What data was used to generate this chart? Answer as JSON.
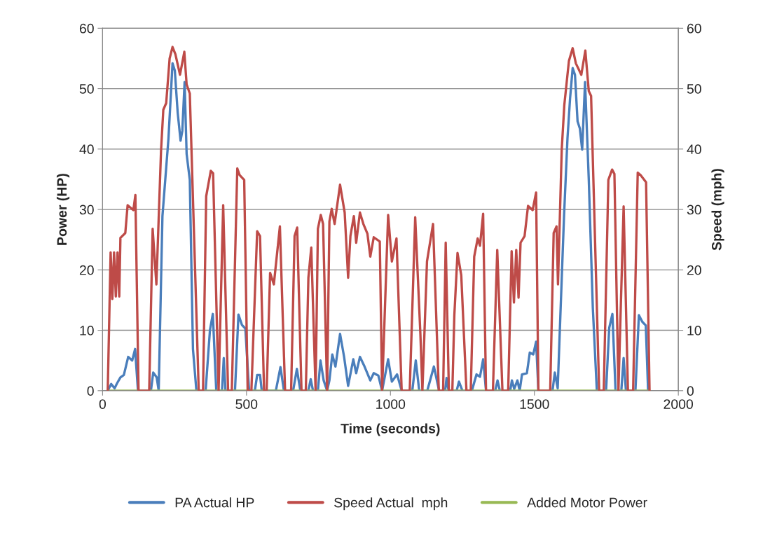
{
  "chart_data": {
    "type": "line",
    "xlabel": "Time (seconds)",
    "ylabel": "Power (HP)",
    "y2label": "Speed (mph)",
    "xlim": [
      0,
      2000
    ],
    "xticks": [
      0,
      500,
      1000,
      1500,
      2000
    ],
    "ylim": [
      0,
      60
    ],
    "yticks": [
      0,
      10,
      20,
      30,
      40,
      50,
      60
    ],
    "y2lim": [
      0,
      60
    ],
    "y2ticks": [
      0,
      10,
      20,
      30,
      40,
      50,
      60
    ],
    "grid": "y",
    "legend": "bottom",
    "marker": "none",
    "line_style": "solid",
    "series": [
      {
        "name": "PA Actual HP",
        "color": "#4a7ebb",
        "axis": "y",
        "x": [
          18,
          30,
          42,
          50,
          62,
          74,
          89,
          103,
          113,
          123,
          168,
          176,
          188,
          195,
          208,
          229,
          243,
          251,
          261,
          271,
          277,
          285,
          292,
          303,
          314,
          326,
          358,
          373,
          383,
          395,
          415,
          421,
          427,
          460,
          472,
          484,
          496,
          509,
          529,
          537,
          547,
          553,
          602,
          618,
          630,
          662,
          675,
          687,
          715,
          723,
          731,
          748,
          757,
          768,
          780,
          788,
          798,
          809,
          825,
          839,
          853,
          871,
          881,
          894,
          910,
          930,
          942,
          958,
          971,
          992,
          1005,
          1023,
          1039,
          1076,
          1088,
          1100,
          1128,
          1151,
          1169,
          1190,
          1195,
          1202,
          1230,
          1238,
          1250,
          1283,
          1299,
          1311,
          1322,
          1332,
          1364,
          1372,
          1380,
          1416,
          1422,
          1430,
          1441,
          1449,
          1457,
          1474,
          1484,
          1496,
          1506,
          1514,
          1563,
          1571,
          1581,
          1603,
          1615,
          1624,
          1633,
          1641,
          1650,
          1658,
          1666,
          1676,
          1689,
          1703,
          1717,
          1749,
          1760,
          1771,
          1782,
          1802,
          1810,
          1818,
          1851,
          1863,
          1875,
          1887,
          1895
        ],
        "values": [
          0,
          1.1,
          0.4,
          1.2,
          2.2,
          2.6,
          5.6,
          5.0,
          6.9,
          0,
          0,
          3,
          2.2,
          0,
          28.9,
          41.8,
          54.2,
          53,
          46,
          41.4,
          43,
          51.1,
          39.2,
          34.9,
          6.9,
          0,
          0,
          10,
          12.7,
          0,
          0,
          5.4,
          0,
          0,
          12.6,
          10.9,
          10.3,
          0,
          0,
          2.6,
          2.6,
          0,
          0,
          3.9,
          0,
          0,
          3.6,
          0,
          0,
          1.9,
          0,
          0,
          5,
          1.7,
          0,
          1.7,
          6,
          4,
          9.4,
          5.6,
          0.8,
          5.2,
          2.9,
          5.6,
          4,
          1.7,
          2.9,
          2.5,
          0,
          5.2,
          1.5,
          2.7,
          0,
          0,
          5,
          0,
          0,
          4,
          0,
          0,
          2.1,
          0,
          0,
          1.5,
          0,
          0,
          2.7,
          2.3,
          5.2,
          0,
          0,
          1.7,
          0,
          0,
          1.7,
          0.3,
          1.7,
          0,
          2.7,
          2.9,
          6.3,
          6,
          8.1,
          0,
          0,
          3,
          0.4,
          28.9,
          41.8,
          48.4,
          53.4,
          52.3,
          44.6,
          43.4,
          39.9,
          51.1,
          34.9,
          13.7,
          0,
          0,
          10.4,
          12.7,
          0,
          0,
          5.4,
          0,
          0,
          12.5,
          11.4,
          10.8,
          0
        ]
      },
      {
        "name": "Speed Actual  mph",
        "color": "#be4b48",
        "axis": "y2",
        "x": [
          18,
          28,
          34,
          40,
          46,
          52,
          58,
          62,
          79,
          87,
          107,
          114,
          125,
          162,
          174,
          187,
          203,
          211,
          221,
          233,
          243,
          253,
          269,
          284,
          292,
          303,
          334,
          349,
          360,
          376,
          384,
          403,
          419,
          436,
          449,
          468,
          476,
          492,
          504,
          517,
          537,
          547,
          561,
          570,
          582,
          595,
          616,
          634,
          655,
          667,
          676,
          691,
          706,
          715,
          725,
          740,
          748,
          758,
          766,
          780,
          788,
          796,
          806,
          825,
          841,
          853,
          861,
          873,
          881,
          894,
          906,
          920,
          930,
          942,
          963,
          971,
          992,
          1005,
          1021,
          1039,
          1067,
          1086,
          1104,
          1111,
          1127,
          1148,
          1168,
          1183,
          1192,
          1203,
          1215,
          1222,
          1233,
          1246,
          1264,
          1279,
          1291,
          1303,
          1311,
          1322,
          1332,
          1356,
          1371,
          1389,
          1409,
          1421,
          1429,
          1437,
          1445,
          1452,
          1466,
          1478,
          1494,
          1506,
          1514,
          1555,
          1567,
          1577,
          1582,
          1595,
          1604,
          1620,
          1633,
          1644,
          1663,
          1677,
          1689,
          1697,
          1725,
          1741,
          1757,
          1770,
          1778,
          1792,
          1810,
          1825,
          1843,
          1859,
          1869,
          1888,
          1900
        ],
        "values": [
          0,
          22.9,
          15.2,
          22.9,
          15.6,
          22.9,
          15.6,
          25.3,
          26.1,
          30.7,
          29.9,
          32.4,
          0,
          0,
          26.8,
          17.6,
          39.6,
          46.5,
          47.6,
          55,
          56.9,
          55.7,
          52.3,
          56.1,
          50.7,
          49.2,
          0,
          0,
          32.2,
          36.4,
          36,
          0,
          30.7,
          0,
          0,
          36.8,
          35.7,
          34.9,
          0,
          0,
          26.4,
          25.6,
          0,
          0,
          19.5,
          17.6,
          27.2,
          0,
          0,
          25.6,
          27,
          0,
          0,
          18.7,
          23.7,
          0,
          26.8,
          29.1,
          27.6,
          0,
          28,
          30.1,
          27.6,
          34.1,
          29.5,
          18.7,
          25.6,
          28.9,
          24.5,
          29.5,
          27.6,
          26,
          22.2,
          25.4,
          24.7,
          0,
          29.1,
          21.4,
          25.2,
          0,
          0,
          28.7,
          9.4,
          0,
          21.4,
          27.6,
          0,
          0,
          24.5,
          0,
          0,
          12.5,
          22.8,
          19.1,
          0,
          0,
          22.2,
          25.2,
          24,
          29.3,
          0,
          0,
          23.3,
          0,
          0,
          23.1,
          14.6,
          23.3,
          15.4,
          24.5,
          25.6,
          30.6,
          29.9,
          32.8,
          0,
          0,
          26.1,
          27.2,
          17.6,
          39.9,
          47.3,
          54.6,
          56.7,
          54.2,
          52.3,
          56.3,
          49.6,
          48.8,
          0,
          0,
          34.9,
          36.6,
          35.9,
          0,
          30.5,
          0,
          0,
          36.1,
          35.7,
          34.5,
          0
        ]
      },
      {
        "name": "Added Motor Power",
        "color": "#98b954",
        "axis": "y",
        "x": [
          18,
          1900
        ],
        "values": [
          0,
          0
        ]
      }
    ]
  }
}
